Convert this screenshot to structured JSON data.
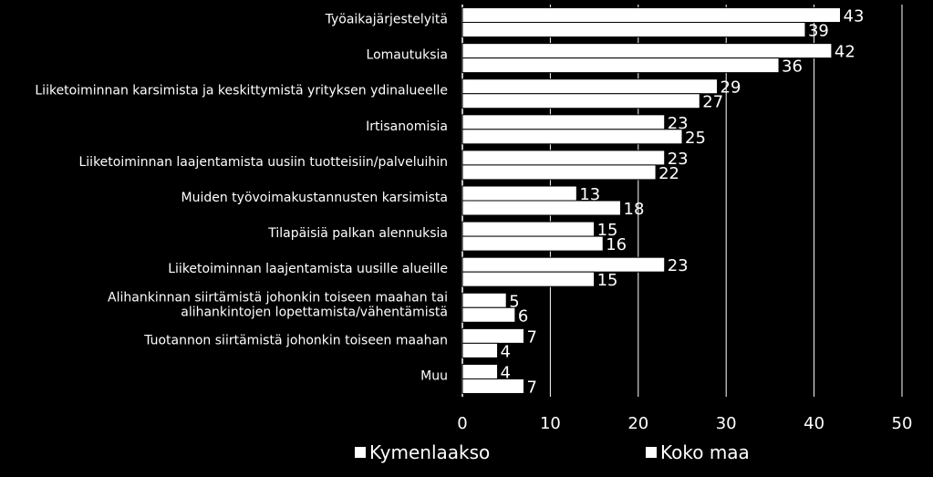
{
  "chart_data": {
    "type": "bar",
    "orientation": "horizontal",
    "categories": [
      [
        "Työaikajärjestelyitä"
      ],
      [
        "Lomautuksia"
      ],
      [
        "Liiketoiminnan karsimista ja keskittymistä yrityksen ydinalueelle"
      ],
      [
        "Irtisanomisia"
      ],
      [
        "Liiketoiminnan laajentamista uusiin tuotteisiin/palveluihin"
      ],
      [
        "Muiden työvoimakustannusten karsimista"
      ],
      [
        "Tilapäisiä palkan alennuksia"
      ],
      [
        "Liiketoiminnan laajentamista uusille alueille"
      ],
      [
        "Alihankinnan siirtämistä johonkin toiseen maahan tai",
        "alihankintojen lopettamista/vähentämistä"
      ],
      [
        "Tuotannon siirtämistä johonkin toiseen maahan"
      ],
      [
        "Muu"
      ]
    ],
    "series": [
      {
        "name": "Kymenlaakso",
        "values": [
          43,
          42,
          29,
          23,
          23,
          13,
          15,
          23,
          5,
          7,
          4
        ]
      },
      {
        "name": "Koko maa",
        "values": [
          39,
          36,
          27,
          25,
          22,
          18,
          16,
          15,
          6,
          4,
          7
        ]
      }
    ],
    "xlim": [
      0,
      50
    ],
    "xticks": [
      "0",
      "10",
      "20",
      "30",
      "40",
      "50"
    ],
    "grid": true,
    "legend_position": "bottom",
    "colors": {
      "background": "#000000",
      "bar": "#ffffff",
      "grid": "#ffffff",
      "text": "#ffffff"
    }
  }
}
